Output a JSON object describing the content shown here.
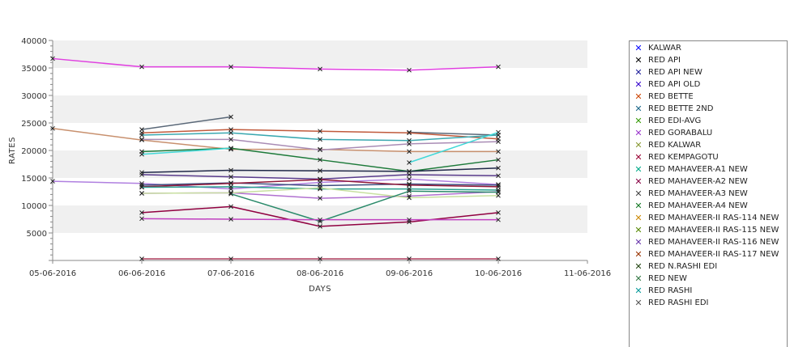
{
  "chart_data": {
    "type": "line",
    "xlabel": "DAYS",
    "ylabel": "RATES",
    "ylim": [
      0,
      40000
    ],
    "yticks": [
      "5000",
      "10000",
      "15000",
      "20000",
      "25000",
      "30000",
      "35000",
      "40000"
    ],
    "xticks": [
      "05-06-2016",
      "06-06-2016",
      "07-06-2016",
      "08-06-2016",
      "09-06-2016",
      "10-06-2016",
      "11-06-2016"
    ],
    "x": [
      "05-06-2016",
      "06-06-2016",
      "07-06-2016",
      "08-06-2016",
      "09-06-2016",
      "10-06-2016"
    ],
    "legend_position": "right",
    "grid": "alternating horizontal bands",
    "legend": [
      {
        "label": "KALWAR",
        "color": "#0000ff"
      },
      {
        "label": "RED API",
        "color": "#000000"
      },
      {
        "label": "RED API NEW",
        "color": "#1a1a99"
      },
      {
        "label": "RED API OLD",
        "color": "#3300cc"
      },
      {
        "label": "RED BETTE",
        "color": "#cc4400"
      },
      {
        "label": "RED BETTE 2ND",
        "color": "#1a6688"
      },
      {
        "label": "RED EDI-AVG",
        "color": "#339900"
      },
      {
        "label": "RED GORABALU",
        "color": "#9933cc"
      },
      {
        "label": "RED KALWAR",
        "color": "#889933"
      },
      {
        "label": "RED KEMPAGOTU",
        "color": "#990033"
      },
      {
        "label": "RED MAHAVEER-A1 NEW",
        "color": "#00aa88"
      },
      {
        "label": "RED MAHAVEER-A2 NEW",
        "color": "#880044"
      },
      {
        "label": "RED MAHAVEER-A3 NEW",
        "color": "#444444"
      },
      {
        "label": "RED MAHAVEER-A4 NEW",
        "color": "#117722"
      },
      {
        "label": "RED MAHAVEER-II RAS-114 NEW",
        "color": "#cc8800"
      },
      {
        "label": "RED MAHAVEER-II RAS-115 NEW",
        "color": "#558800"
      },
      {
        "label": "RED MAHAVEER-II RAS-116 NEW",
        "color": "#6633aa"
      },
      {
        "label": "RED MAHAVEER-II RAS-117 NEW",
        "color": "#993300"
      },
      {
        "label": "RED N.RASHI EDI",
        "color": "#224411"
      },
      {
        "label": "RED NEW",
        "color": "#337744"
      },
      {
        "label": "RED RASHI",
        "color": "#009999"
      },
      {
        "label": "RED RASHI EDI",
        "color": "#555555"
      }
    ],
    "series": [
      {
        "values": [
          36700,
          35200,
          35200,
          34800,
          34600,
          35200
        ],
        "color": "#e040e0"
      },
      {
        "values": [
          null,
          23800,
          26100,
          null,
          23300,
          22800
        ],
        "color": "#5a6878"
      },
      {
        "values": [
          24000,
          21900,
          20200,
          20200,
          19800,
          19800
        ],
        "color": "#c8906e"
      },
      {
        "values": [
          null,
          23200,
          23800,
          23500,
          23200,
          22100
        ],
        "color": "#c05a3c"
      },
      {
        "values": [
          null,
          22800,
          23200,
          22000,
          21800,
          22800
        ],
        "color": "#3aa8b0"
      },
      {
        "values": [
          null,
          22000,
          22000,
          20100,
          21200,
          21600
        ],
        "color": "#a98cb5"
      },
      {
        "values": [
          null,
          19800,
          20400,
          18300,
          16200,
          18300
        ],
        "color": "#1d7a3a"
      },
      {
        "values": [
          null,
          19300,
          20400,
          null,
          17800,
          23300
        ],
        "color": "#40d8d8"
      },
      {
        "values": [
          null,
          16000,
          16400,
          16300,
          16200,
          16800
        ],
        "color": "#202848"
      },
      {
        "values": [
          null,
          15600,
          15200,
          14800,
          15600,
          15400
        ],
        "color": "#5a3c8c"
      },
      {
        "values": [
          14400,
          14000,
          13000,
          14200,
          14800,
          13800
        ],
        "color": "#b080e0"
      },
      {
        "values": [
          null,
          13700,
          14100,
          13600,
          13900,
          13700
        ],
        "color": "#405080"
      },
      {
        "values": [
          null,
          13400,
          14000,
          14700,
          13700,
          13400
        ],
        "color": "#901838"
      },
      {
        "values": [
          null,
          13300,
          13400,
          13000,
          13000,
          12800
        ],
        "color": "#2aa090"
      },
      {
        "values": [
          null,
          12200,
          12300,
          11300,
          11700,
          12500
        ],
        "color": "#b070d0"
      },
      {
        "values": [
          null,
          12200,
          12300,
          13200,
          11400,
          11800
        ],
        "color": "#c8e0a0"
      },
      {
        "values": [
          null,
          null,
          12100,
          7100,
          12600,
          12400
        ],
        "color": "#2a8a6a"
      },
      {
        "values": [
          null,
          8700,
          9800,
          6200,
          7000,
          8700
        ],
        "color": "#900040"
      },
      {
        "values": [
          null,
          7600,
          7500,
          7400,
          7400,
          7400
        ],
        "color": "#c040c0"
      },
      {
        "values": [
          null,
          300,
          300,
          300,
          300,
          300
        ],
        "color": "#b04060"
      }
    ]
  }
}
